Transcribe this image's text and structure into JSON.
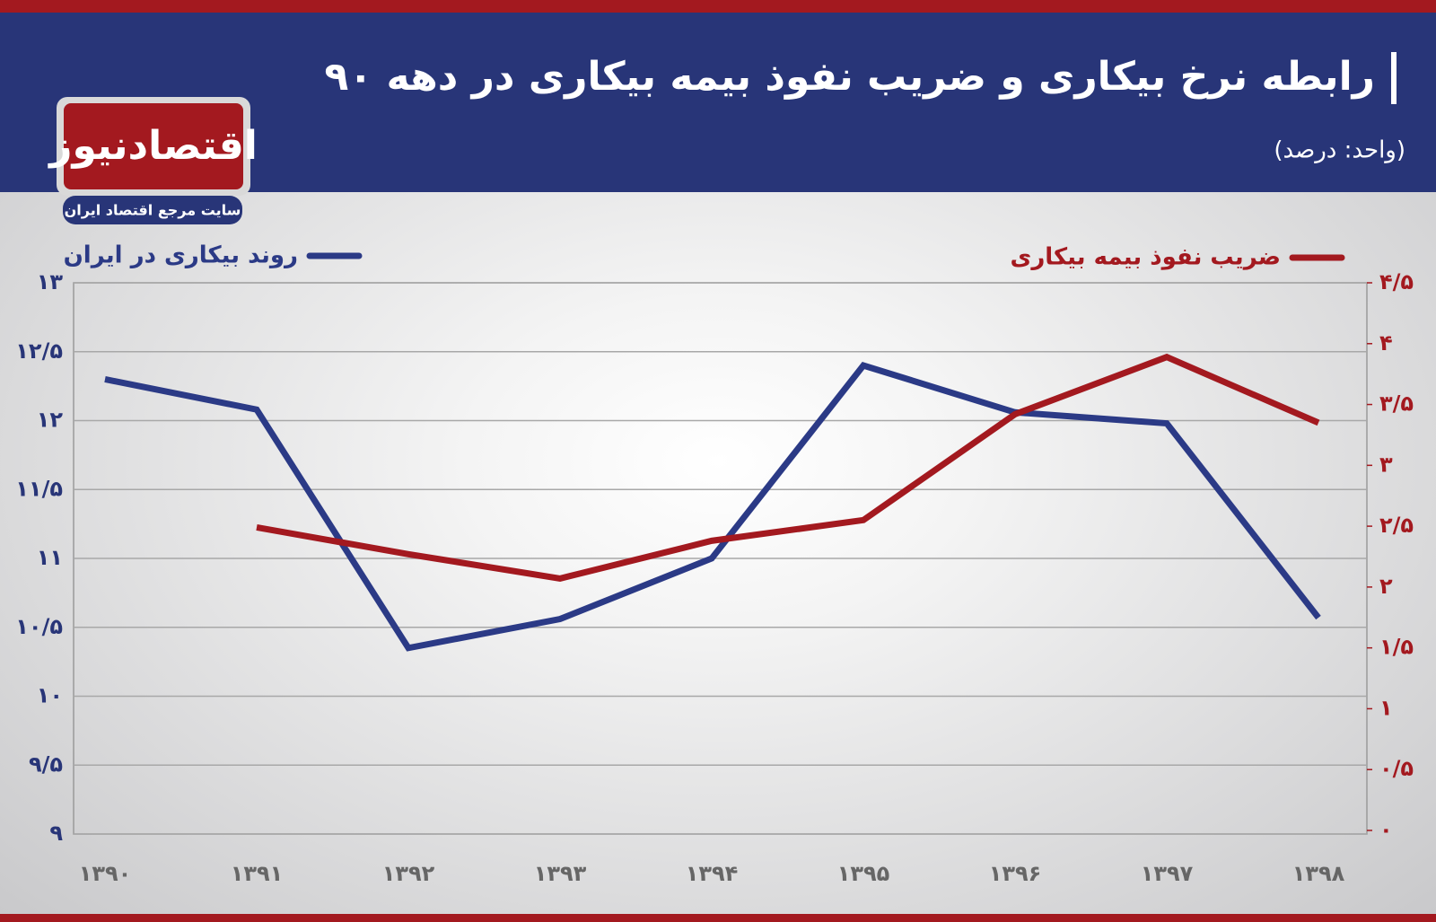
{
  "logo": {
    "name": "اقتصادنیوز",
    "tagline": "سایت مرجع اقتصاد ایران"
  },
  "chart_data": {
    "type": "line",
    "title": "رابطه نرخ بیکاری و ضریب نفوذ بیمه بیکاری در دهه ۹۰",
    "subtitle": "(واحد: درصد)",
    "categories": [
      "۱۳۹۰",
      "۱۳۹۱",
      "۱۳۹۲",
      "۱۳۹۳",
      "۱۳۹۴",
      "۱۳۹۵",
      "۱۳۹۶",
      "۱۳۹۷",
      "۱۳۹۸"
    ],
    "series": [
      {
        "name": "روند بیکاری در ایران",
        "color": "#2b3a86",
        "axis": "y",
        "values": [
          12.3,
          12.08,
          10.35,
          10.56,
          11.0,
          12.4,
          12.06,
          11.98,
          10.57
        ]
      },
      {
        "name": "ضریب نفوذ بیمه بیکاری",
        "color": "#a3191f",
        "axis": "y2",
        "values": [
          null,
          2.49,
          2.27,
          2.07,
          2.38,
          2.55,
          3.42,
          3.89,
          3.35
        ]
      }
    ],
    "ylim": [
      9,
      13
    ],
    "yticks": [
      {
        "value": 9,
        "label": "۹"
      },
      {
        "value": 9.5,
        "label": "۹/۵"
      },
      {
        "value": 10,
        "label": "۱۰"
      },
      {
        "value": 10.5,
        "label": "۱۰/۵"
      },
      {
        "value": 11,
        "label": "۱۱"
      },
      {
        "value": 11.5,
        "label": "۱۱/۵"
      },
      {
        "value": 12,
        "label": "۱۲"
      },
      {
        "value": 12.5,
        "label": "۱۲/۵"
      },
      {
        "value": 13,
        "label": "۱۳"
      }
    ],
    "y2lim": [
      0,
      4.5
    ],
    "y2ticks": [
      {
        "value": 0,
        "label": "۰"
      },
      {
        "value": 0.5,
        "label": "۰/۵"
      },
      {
        "value": 1,
        "label": "۱"
      },
      {
        "value": 1.5,
        "label": "۱/۵"
      },
      {
        "value": 2,
        "label": "۲"
      },
      {
        "value": 2.5,
        "label": "۲/۵"
      },
      {
        "value": 3,
        "label": "۳"
      },
      {
        "value": 3.5,
        "label": "۳/۵"
      },
      {
        "value": 4,
        "label": "۴"
      },
      {
        "value": 4.5,
        "label": "۴/۵"
      }
    ],
    "grid": true
  }
}
